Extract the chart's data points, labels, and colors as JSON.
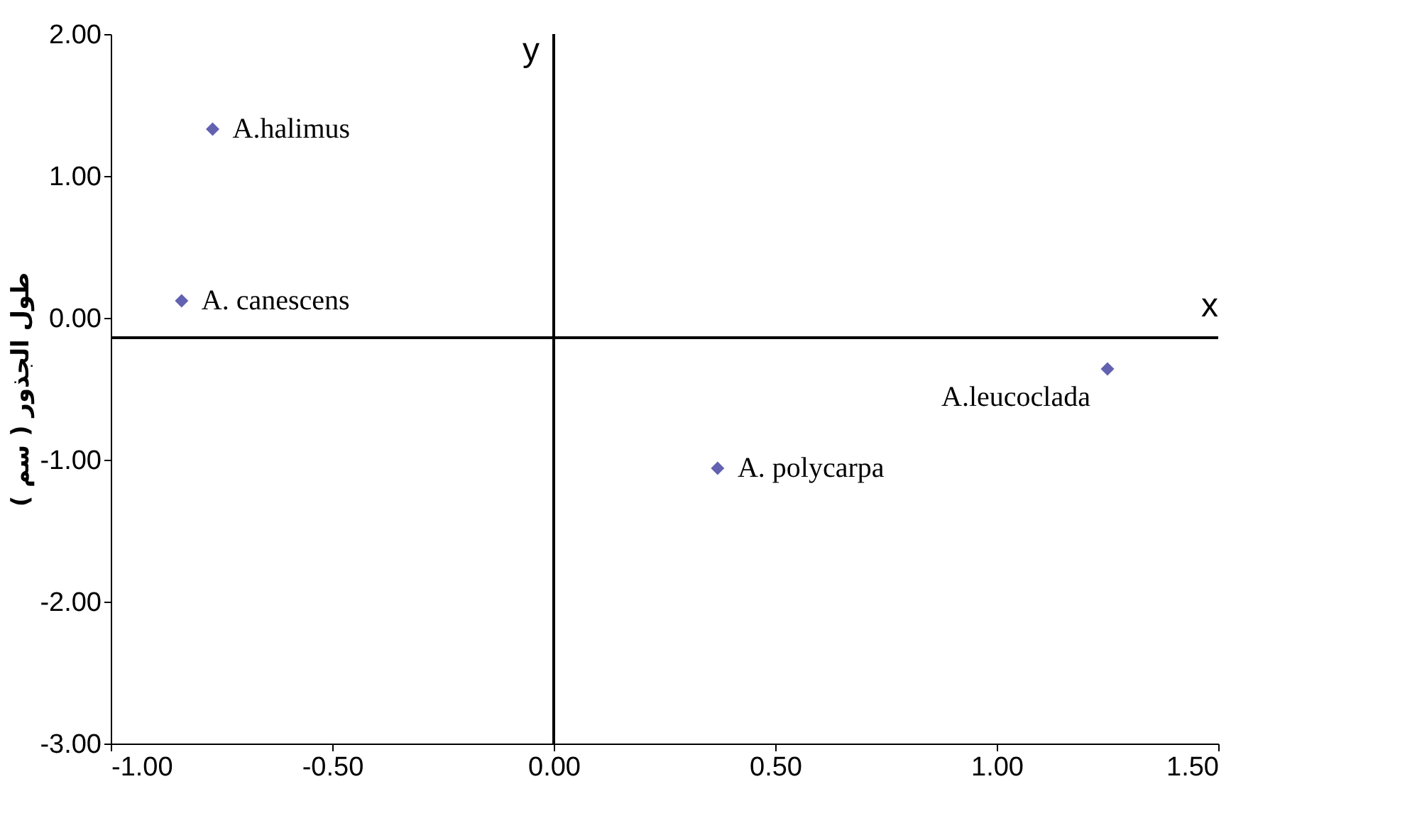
{
  "chart_data": {
    "type": "scatter",
    "ylabel": "طول الجذور ( سم )",
    "x": [
      -0.77,
      -0.84,
      1.25,
      0.37
    ],
    "series": [
      {
        "color": "#1f1f8f",
        "values": [
          1.33,
          0.12,
          -0.36,
          -1.06
        ]
      }
    ],
    "xlim": [
      -1,
      1.5
    ],
    "xticks": [
      {
        "value": -1,
        "label": "-1.00"
      },
      {
        "value": -0.5,
        "label": "-0.50"
      },
      {
        "value": 0,
        "label": "0.00"
      },
      {
        "value": 0.5,
        "label": "0.50"
      },
      {
        "value": 1,
        "label": "1.00"
      },
      {
        "value": 1.5,
        "label": "1.50"
      }
    ],
    "ylim": [
      -3,
      2
    ],
    "yticks": [
      {
        "value": -3,
        "label": "-3.00"
      },
      {
        "value": -2,
        "label": "-2.00"
      },
      {
        "value": -1,
        "label": "-1.00"
      },
      {
        "value": 0,
        "label": "0.00"
      },
      {
        "value": 1,
        "label": "1.00"
      },
      {
        "value": 2,
        "label": "2.00"
      }
    ],
    "ref_lines": [
      {
        "axis": "x",
        "value": 0,
        "label": "y"
      },
      {
        "axis": "y",
        "value": -0.14,
        "label": "x"
      }
    ],
    "annotations": [
      {
        "text": "A.halimus",
        "x": -0.77,
        "y": 1.33
      },
      {
        "text": "A. canescens",
        "x": -0.84,
        "y": 0.12
      },
      {
        "text": "A.leucoclada",
        "x": 1.25,
        "y": -0.36
      },
      {
        "text": "A. polycarpa",
        "x": 0.37,
        "y": -1.06
      }
    ],
    "marker": "diamond",
    "grid": false,
    "legend": false
  }
}
